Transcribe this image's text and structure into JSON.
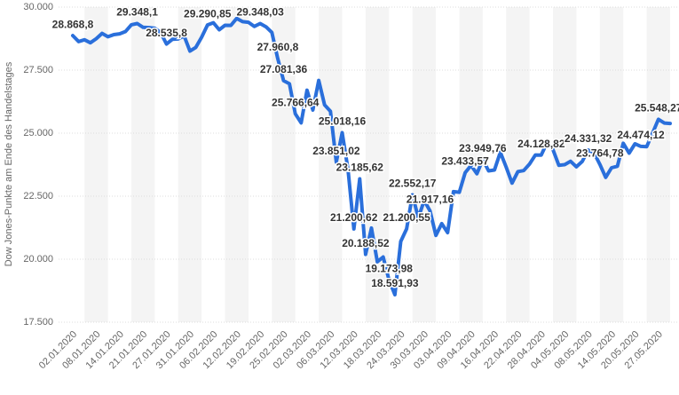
{
  "chart_data": {
    "type": "line",
    "y_label": "Dow Jones-Punkte am Ende des Handelstages",
    "color": "#2a6fdb",
    "grid": true,
    "ylim": [
      17500,
      30000
    ],
    "yticks": [
      {
        "value": 17500,
        "label": "17.500"
      },
      {
        "value": 20000,
        "label": "20.000"
      },
      {
        "value": 22500,
        "label": "22.500"
      },
      {
        "value": 25000,
        "label": "25.000"
      },
      {
        "value": 27500,
        "label": "27.500"
      },
      {
        "value": 30000,
        "label": "30.000"
      }
    ],
    "categories": [
      "02.01.2020",
      null,
      null,
      null,
      "08.01.2020",
      null,
      null,
      null,
      "14.01.2020",
      null,
      null,
      null,
      "21.01.2020",
      null,
      null,
      null,
      "27.01.2020",
      null,
      null,
      null,
      "31.01.2020",
      null,
      null,
      null,
      "06.02.2020",
      null,
      null,
      null,
      "12.02.2020",
      null,
      null,
      null,
      "19.02.2020",
      null,
      null,
      null,
      "25.02.2020",
      null,
      null,
      null,
      "02.03.2020",
      null,
      null,
      null,
      "06.03.2020",
      null,
      null,
      null,
      "12.03.2020",
      null,
      null,
      null,
      "18.03.2020",
      null,
      null,
      null,
      "24.03.2020",
      null,
      null,
      null,
      "30.03.2020",
      null,
      null,
      null,
      "03.04.2020",
      null,
      null,
      null,
      "09.04.2020",
      null,
      null,
      null,
      "16.04.2020",
      null,
      null,
      null,
      "22.04.2020",
      null,
      null,
      null,
      "28.04.2020",
      null,
      null,
      null,
      "04.05.2020",
      null,
      null,
      null,
      "08.05.2020",
      null,
      null,
      null,
      "14.05.2020",
      null,
      null,
      null,
      "20.05.2020",
      null,
      null,
      null,
      "27.05.2020",
      null,
      null
    ],
    "values": [
      28868.8,
      28634.88,
      28703.38,
      28583.68,
      28745.09,
      28956.9,
      28823.77,
      28907.05,
      28939.67,
      29030.22,
      29297.64,
      29348.1,
      29196.04,
      29186.27,
      29160.09,
      28989.73,
      28535.8,
      28722.85,
      28734.45,
      28859.44,
      28256.03,
      28399.81,
      28807.63,
      29290.85,
      29379.77,
      29102.51,
      29276.82,
      29276.34,
      29551.42,
      29423.31,
      29398.08,
      29232.19,
      29348.03,
      29219.98,
      28992.41,
      27960.8,
      27081.36,
      26957.59,
      25766.64,
      25409.36,
      26703.32,
      25917.41,
      27090.86,
      26121.28,
      25864.78,
      23851.02,
      25018.16,
      23553.22,
      21200.62,
      23185.62,
      20188.52,
      21237.38,
      19898.92,
      20087.19,
      19173.98,
      18591.93,
      20704.91,
      21200.55,
      22552.17,
      21636.78,
      22327.48,
      21917.16,
      20943.51,
      21413.44,
      21052.53,
      22679.99,
      22653.86,
      23433.57,
      23719.37,
      23390.77,
      23949.76,
      23504.35,
      23537.68,
      24242.49,
      23650.44,
      23018.88,
      23475.82,
      23515.26,
      23775.27,
      24133.78,
      24128.82,
      24633.86,
      24345.72,
      23723.69,
      23749.76,
      23883.09,
      23664.64,
      23875.89,
      24331.32,
      24221.99,
      23764.78,
      23247.97,
      23625.34,
      23685.42,
      24597.37,
      24206.86,
      24575.9,
      24474.12,
      24465.16,
      24995.11,
      25548.27,
      25400.64,
      25383.11
    ],
    "value_labels": [
      "28.868,8",
      null,
      null,
      null,
      null,
      null,
      null,
      null,
      null,
      null,
      null,
      "29.348,1",
      null,
      null,
      null,
      null,
      "28.535,8",
      null,
      null,
      null,
      null,
      null,
      null,
      "29.290,85",
      null,
      null,
      null,
      null,
      null,
      null,
      null,
      null,
      "29.348,03",
      null,
      null,
      "27.960,8",
      "27.081,36",
      null,
      "25.766,64",
      null,
      null,
      null,
      null,
      null,
      null,
      "23.851,02",
      "25.018,16",
      null,
      "21.200,62",
      "23.185,62",
      "20.188,52",
      null,
      null,
      null,
      "19.173,98",
      "18.591,93",
      null,
      "21.200,55",
      "22.552,17",
      null,
      null,
      "21.917,16",
      null,
      null,
      null,
      null,
      null,
      "23.433,57",
      null,
      null,
      "23.949,76",
      null,
      null,
      null,
      null,
      null,
      null,
      null,
      null,
      null,
      "24.128,82",
      null,
      null,
      null,
      null,
      null,
      null,
      null,
      "24.331,32",
      null,
      "23.764,78",
      null,
      null,
      null,
      null,
      null,
      null,
      "24.474,12",
      null,
      null,
      "25.548,27",
      null,
      null
    ]
  }
}
